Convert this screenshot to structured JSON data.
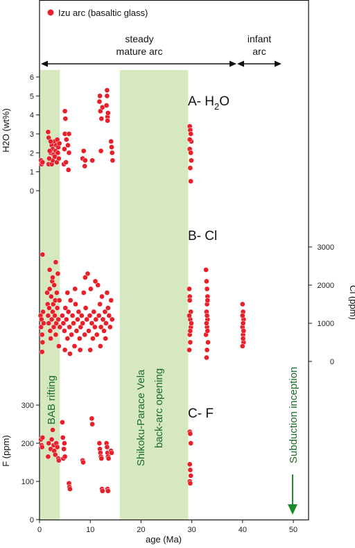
{
  "chart_data": {
    "type": "scatter",
    "xlabel": "age (Ma)",
    "xlim": [
      0,
      53
    ],
    "x_ticks": [
      "0",
      "10",
      "20",
      "30",
      "40",
      "50"
    ],
    "legend": {
      "label": "Izu arc (basaltic glass)",
      "color": "#e8202a",
      "placement": "top-left"
    },
    "arc_stages": [
      {
        "label_line1": "steady",
        "label_line2": "mature arc",
        "from": 0,
        "to": 40
      },
      {
        "label_line1": "infant",
        "label_line2": "arc",
        "from": 40,
        "to": 49
      }
    ],
    "bands": [
      {
        "label": "BAB rifting",
        "from": 0,
        "to": 4,
        "color": "#d6e8c0"
      },
      {
        "label_line1": "Shikoku-Parace Vela",
        "label_line2": "back-arc opening",
        "from": 15.8,
        "to": 29.3,
        "color": "#d6e8c0"
      }
    ],
    "annotation": {
      "label": "Subduction inception",
      "x": 51,
      "color": "#1a8a2a"
    },
    "panels": [
      {
        "id": "h2o",
        "label": "A- H",
        "label_sub": "2",
        "label_tail": "O",
        "ylabel": "H2O (wt%)",
        "ylim": [
          0,
          6
        ],
        "y_ticks": [
          "0",
          "1",
          "2",
          "3",
          "4",
          "5",
          "6"
        ],
        "axis_side": "left",
        "points": [
          [
            0.3,
            1.6
          ],
          [
            0.4,
            1.4
          ],
          [
            0.6,
            1.5
          ],
          [
            1.8,
            1.4
          ],
          [
            1.8,
            2.8
          ],
          [
            1.7,
            3.1
          ],
          [
            2.2,
            2.0
          ],
          [
            2.4,
            1.4
          ],
          [
            2.6,
            1.6
          ],
          [
            2.4,
            2.4
          ],
          [
            2.6,
            2.2
          ],
          [
            2.8,
            1.9
          ],
          [
            3.0,
            2.6
          ],
          [
            3.0,
            1.8
          ],
          [
            3.2,
            2.1
          ],
          [
            3.3,
            2.4
          ],
          [
            3.4,
            1.5
          ],
          [
            3.5,
            2.7
          ],
          [
            3.6,
            2.0
          ],
          [
            3.7,
            2.3
          ],
          [
            3.8,
            1.7
          ],
          [
            2.0,
            2.1
          ],
          [
            1.9,
            1.7
          ],
          [
            2.2,
            2.6
          ],
          [
            3.9,
            2.5
          ],
          [
            4.8,
            1.4
          ],
          [
            4.9,
            2.2
          ],
          [
            5.0,
            3.0
          ],
          [
            5.1,
            3.8
          ],
          [
            5.0,
            4.2
          ],
          [
            5.3,
            2.7
          ],
          [
            5.6,
            2.4
          ],
          [
            5.8,
            3.0
          ],
          [
            5.7,
            1.1
          ],
          [
            5.8,
            2.0
          ],
          [
            5.2,
            1.5
          ],
          [
            8.5,
            1.7
          ],
          [
            8.7,
            2.1
          ],
          [
            8.9,
            1.3
          ],
          [
            9.0,
            1.6
          ],
          [
            10.4,
            1.6
          ],
          [
            11.8,
            4.7
          ],
          [
            11.9,
            5.0
          ],
          [
            12.0,
            4.2
          ],
          [
            12.2,
            3.8
          ],
          [
            12.4,
            4.4
          ],
          [
            12.1,
            2.1
          ],
          [
            13.2,
            4.5
          ],
          [
            13.3,
            5.0
          ],
          [
            13.4,
            3.9
          ],
          [
            13.3,
            5.3
          ],
          [
            13.5,
            4.1
          ],
          [
            13.4,
            3.7
          ],
          [
            14.1,
            2.6
          ],
          [
            14.2,
            2.3
          ],
          [
            14.3,
            2.0
          ],
          [
            14.4,
            1.6
          ],
          [
            29.6,
            3.4
          ],
          [
            29.7,
            3.2
          ],
          [
            29.8,
            3.0
          ],
          [
            29.9,
            2.6
          ],
          [
            29.6,
            2.2
          ],
          [
            29.8,
            2.0
          ],
          [
            29.9,
            1.6
          ],
          [
            29.7,
            1.2
          ],
          [
            29.8,
            0.5
          ],
          [
            29.6,
            2.7
          ]
        ]
      },
      {
        "id": "cl",
        "label": "B- Cl",
        "ylabel": "Cl (ppm)",
        "ylim": [
          0,
          3000
        ],
        "y_ticks": [
          "0",
          "1000",
          "2000",
          "3000"
        ],
        "axis_side": "right",
        "points": [
          [
            0.2,
            1200
          ],
          [
            0.3,
            900
          ],
          [
            0.4,
            1100
          ],
          [
            0.5,
            700
          ],
          [
            0.6,
            500
          ],
          [
            0.5,
            250
          ],
          [
            0.7,
            1300
          ],
          [
            0.8,
            1000
          ],
          [
            0.6,
            2800
          ],
          [
            1.5,
            1800
          ],
          [
            1.6,
            1500
          ],
          [
            1.7,
            1200
          ],
          [
            1.8,
            1000
          ],
          [
            1.9,
            1400
          ],
          [
            2.0,
            1900
          ],
          [
            2.0,
            2400
          ],
          [
            2.1,
            800
          ],
          [
            2.2,
            600
          ],
          [
            2.3,
            1700
          ],
          [
            2.4,
            1100
          ],
          [
            2.5,
            2100
          ],
          [
            2.6,
            1300
          ],
          [
            2.7,
            1500
          ],
          [
            2.8,
            900
          ],
          [
            2.9,
            2000
          ],
          [
            3.0,
            1200
          ],
          [
            3.1,
            1600
          ],
          [
            3.2,
            700
          ],
          [
            3.3,
            1000
          ],
          [
            3.4,
            1800
          ],
          [
            3.5,
            1400
          ],
          [
            3.6,
            2300
          ],
          [
            3.7,
            1100
          ],
          [
            3.8,
            400
          ],
          [
            3.9,
            1600
          ],
          [
            4.0,
            900
          ],
          [
            3.2,
            2600
          ],
          [
            2.6,
            2200
          ],
          [
            4.5,
            1200
          ],
          [
            4.7,
            1000
          ],
          [
            4.9,
            800
          ],
          [
            5.1,
            1400
          ],
          [
            5.3,
            1100
          ],
          [
            5.5,
            600
          ],
          [
            5.7,
            1300
          ],
          [
            5.9,
            900
          ],
          [
            6.1,
            1600
          ],
          [
            6.3,
            700
          ],
          [
            6.5,
            1200
          ],
          [
            6.7,
            1000
          ],
          [
            6.9,
            400
          ],
          [
            7.1,
            1500
          ],
          [
            7.3,
            800
          ],
          [
            7.5,
            1100
          ],
          [
            7.7,
            1300
          ],
          [
            7.9,
            600
          ],
          [
            8.1,
            900
          ],
          [
            8.3,
            1200
          ],
          [
            8.5,
            1000
          ],
          [
            8.7,
            1800
          ],
          [
            8.9,
            700
          ],
          [
            9.1,
            1400
          ],
          [
            9.3,
            1100
          ],
          [
            9.5,
            2300
          ],
          [
            9.7,
            800
          ],
          [
            9.9,
            1200
          ],
          [
            10.1,
            1900
          ],
          [
            10.3,
            1000
          ],
          [
            10.5,
            600
          ],
          [
            10.7,
            1300
          ],
          [
            10.9,
            900
          ],
          [
            11.1,
            1100
          ],
          [
            11.3,
            700
          ],
          [
            11.5,
            2000
          ],
          [
            11.7,
            1200
          ],
          [
            11.9,
            1500
          ],
          [
            12.1,
            900
          ],
          [
            12.3,
            1700
          ],
          [
            12.5,
            1100
          ],
          [
            12.7,
            800
          ],
          [
            12.9,
            1300
          ],
          [
            13.1,
            1000
          ],
          [
            13.3,
            1800
          ],
          [
            13.5,
            1400
          ],
          [
            13.7,
            1200
          ],
          [
            13.9,
            900
          ],
          [
            14.1,
            1600
          ],
          [
            14.3,
            1100
          ],
          [
            5.0,
            300
          ],
          [
            6.0,
            200
          ],
          [
            8.0,
            300
          ],
          [
            10.0,
            300
          ],
          [
            12.0,
            400
          ],
          [
            7.0,
            1900
          ],
          [
            9.0,
            2200
          ],
          [
            11.0,
            2100
          ],
          [
            5.5,
            1800
          ],
          [
            13.0,
            600
          ],
          [
            29.5,
            1900
          ],
          [
            29.6,
            1700
          ],
          [
            29.7,
            1100
          ],
          [
            29.8,
            900
          ],
          [
            29.6,
            700
          ],
          [
            29.7,
            500
          ],
          [
            29.5,
            300
          ],
          [
            29.8,
            1300
          ],
          [
            29.9,
            1000
          ],
          [
            29.6,
            1600
          ],
          [
            29.7,
            800
          ],
          [
            29.5,
            1200
          ],
          [
            32.8,
            2400
          ],
          [
            32.9,
            2100
          ],
          [
            33.0,
            1900
          ],
          [
            33.1,
            1700
          ],
          [
            33.0,
            1500
          ],
          [
            32.9,
            1300
          ],
          [
            33.1,
            1100
          ],
          [
            33.0,
            900
          ],
          [
            32.8,
            700
          ],
          [
            33.2,
            500
          ],
          [
            33.0,
            300
          ],
          [
            32.9,
            100
          ],
          [
            33.1,
            1600
          ],
          [
            33.0,
            1200
          ],
          [
            32.9,
            1000
          ],
          [
            33.1,
            800
          ],
          [
            40.0,
            1500
          ],
          [
            40.1,
            1300
          ],
          [
            40.2,
            1100
          ],
          [
            40.0,
            900
          ],
          [
            40.1,
            700
          ],
          [
            40.2,
            500
          ],
          [
            40.0,
            400
          ],
          [
            40.1,
            1000
          ],
          [
            40.2,
            800
          ],
          [
            40.0,
            1200
          ],
          [
            40.1,
            600
          ]
        ]
      },
      {
        "id": "f",
        "label": "C- F",
        "ylabel": "F (ppm)",
        "ylim": [
          0,
          300
        ],
        "y_ticks": [
          "0",
          "100",
          "200",
          "300"
        ],
        "axis_side": "left",
        "points": [
          [
            0.3,
            210
          ],
          [
            0.4,
            195
          ],
          [
            0.5,
            190
          ],
          [
            0.6,
            215
          ],
          [
            1.7,
            165
          ],
          [
            1.8,
            200
          ],
          [
            2.2,
            185
          ],
          [
            2.4,
            210
          ],
          [
            2.6,
            235
          ],
          [
            2.8,
            195
          ],
          [
            2.9,
            180
          ],
          [
            3.1,
            170
          ],
          [
            3.3,
            200
          ],
          [
            3.5,
            190
          ],
          [
            3.7,
            160
          ],
          [
            3.8,
            155
          ],
          [
            4.5,
            255
          ],
          [
            4.6,
            215
          ],
          [
            4.7,
            160
          ],
          [
            4.8,
            185
          ],
          [
            4.9,
            200
          ],
          [
            5.0,
            165
          ],
          [
            5.8,
            95
          ],
          [
            5.9,
            85
          ],
          [
            6.0,
            80
          ],
          [
            8.5,
            155
          ],
          [
            8.6,
            150
          ],
          [
            10.3,
            265
          ],
          [
            10.4,
            250
          ],
          [
            11.8,
            200
          ],
          [
            11.9,
            185
          ],
          [
            12.0,
            175
          ],
          [
            12.1,
            165
          ],
          [
            12.2,
            160
          ],
          [
            12.3,
            80
          ],
          [
            12.4,
            75
          ],
          [
            13.2,
            200
          ],
          [
            13.3,
            190
          ],
          [
            13.4,
            175
          ],
          [
            13.5,
            165
          ],
          [
            13.6,
            160
          ],
          [
            13.4,
            80
          ],
          [
            13.5,
            75
          ],
          [
            14.1,
            180
          ],
          [
            14.2,
            175
          ],
          [
            29.6,
            230
          ],
          [
            29.7,
            225
          ],
          [
            29.8,
            200
          ],
          [
            29.6,
            145
          ],
          [
            29.7,
            130
          ],
          [
            29.8,
            115
          ],
          [
            29.6,
            100
          ],
          [
            29.7,
            95
          ]
        ]
      }
    ]
  }
}
